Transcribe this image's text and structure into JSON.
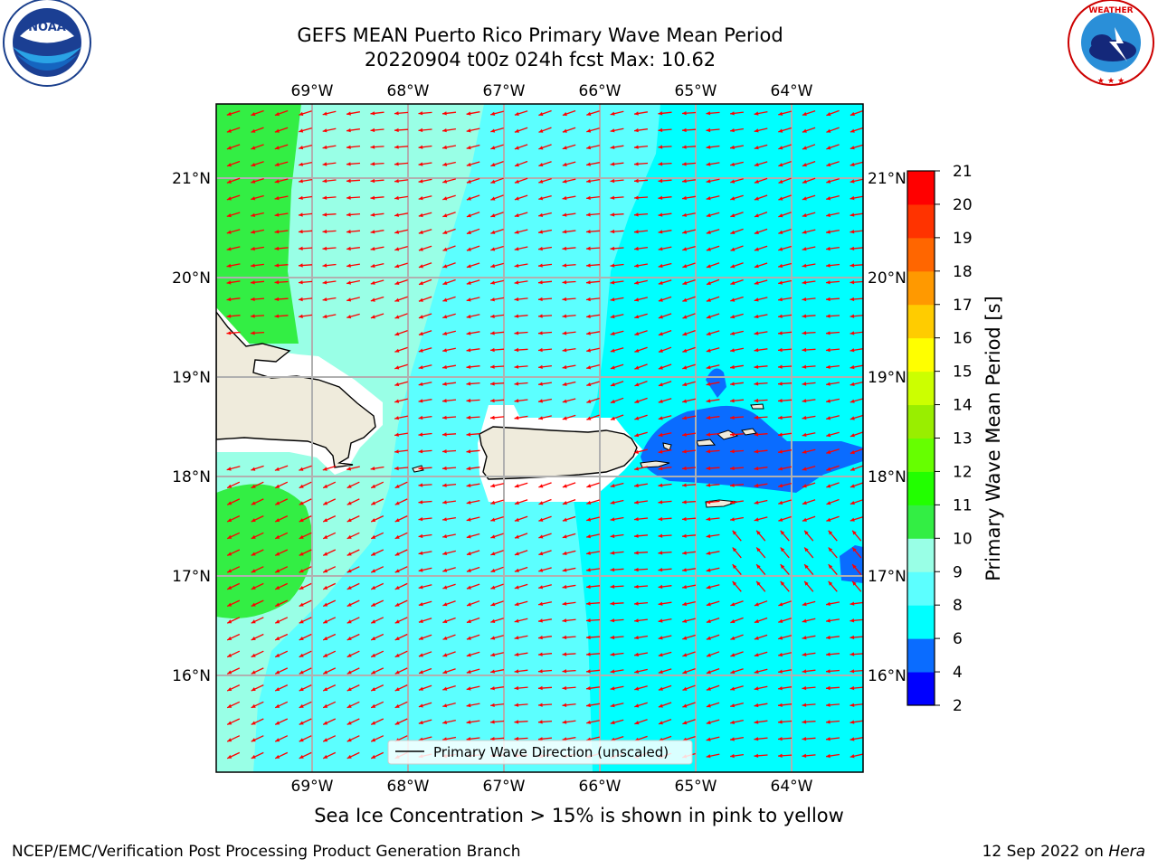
{
  "title_line1": "GEFS MEAN Puerto Rico Primary Wave Mean Period",
  "title_line2": "20220904 t00z 024h fcst   Max: 10.62",
  "subnote": "Sea Ice Concentration > 15% is shown in pink to yellow",
  "footer": {
    "credit": "NCEP/EMC/Verification Post Processing Product Generation Branch",
    "date": "12 Sep 2022 on",
    "host": "Hera"
  },
  "logos": {
    "left": "NOAA",
    "right": "NATIONAL WEATHER SERVICE"
  },
  "map": {
    "lon_ticks": [
      "69°W",
      "68°W",
      "67°W",
      "66°W",
      "65°W",
      "64°W"
    ],
    "lat_ticks": [
      "21°N",
      "20°N",
      "19°N",
      "18°N",
      "17°N",
      "16°N"
    ],
    "legend_label": "Primary Wave Direction (unscaled)",
    "arrow_color": "#ff0000",
    "land_color": "#efebdc"
  },
  "colorbar": {
    "label": "Primary Wave Mean Period [s]",
    "ticks": [
      "2",
      "4",
      "6",
      "8",
      "9",
      "10",
      "11",
      "12",
      "13",
      "14",
      "15",
      "16",
      "17",
      "18",
      "19",
      "20",
      "21"
    ],
    "colors": [
      "#0000ff",
      "#0a6cff",
      "#00ffff",
      "#5cffff",
      "#99ffe6",
      "#33ee44",
      "#22ff00",
      "#66ff00",
      "#99ee00",
      "#ccff00",
      "#ffff00",
      "#ffcc00",
      "#ff9900",
      "#ff6600",
      "#ff3300",
      "#ff0000"
    ]
  }
}
